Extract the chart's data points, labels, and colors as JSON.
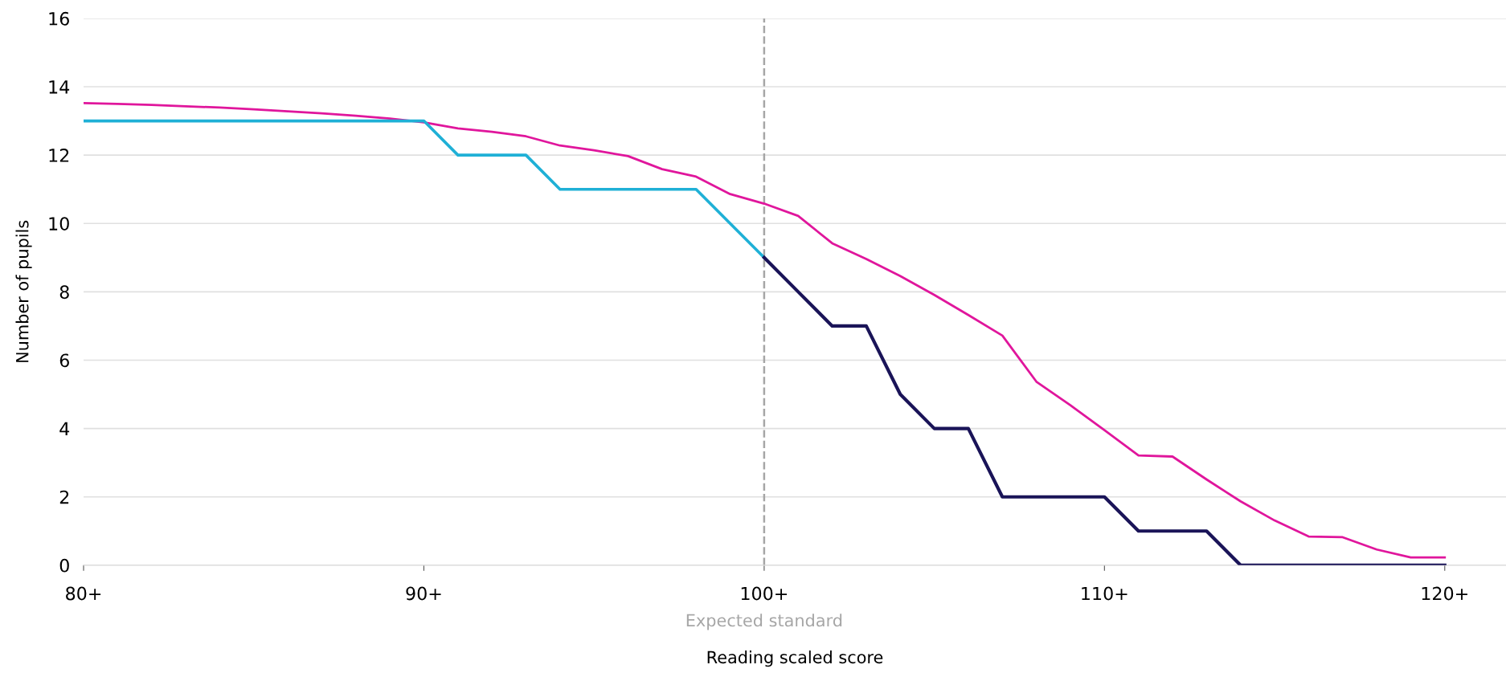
{
  "chart_data": {
    "type": "line",
    "xlabel": "Reading scaled score",
    "ylabel": "Number of pupils",
    "categories": [
      "80+",
      null,
      null,
      null,
      null,
      null,
      null,
      null,
      null,
      null,
      "90+",
      null,
      null,
      null,
      null,
      null,
      null,
      null,
      null,
      null,
      "100+",
      null,
      null,
      null,
      null,
      null,
      null,
      null,
      null,
      null,
      "110+",
      null,
      null,
      null,
      null,
      null,
      null,
      null,
      null,
      null,
      "120+"
    ],
    "ylim": [
      0,
      16
    ],
    "yticks": [
      0,
      2,
      4,
      6,
      8,
      10,
      12,
      14,
      16
    ],
    "grid": "y",
    "legend": false,
    "marker": "none",
    "line_style": "solid",
    "ref_lines": [
      {
        "axis": "x",
        "value": "100+",
        "label": "Expected standard",
        "color": "#a6a6a6",
        "line_style": "dashed"
      }
    ],
    "series": [
      {
        "color": "#e0169c",
        "values": [
          13.52,
          13.5,
          13.47,
          13.43,
          13.39,
          13.34,
          13.28,
          13.22,
          13.15,
          13.07,
          12.96,
          12.78,
          12.68,
          12.55,
          12.28,
          12.14,
          11.97,
          11.59,
          11.37,
          10.86,
          10.58,
          10.22,
          9.42,
          8.96,
          8.46,
          7.91,
          7.32,
          6.72,
          5.37,
          4.68,
          3.95,
          3.21,
          3.18,
          2.51,
          1.87,
          1.31,
          0.84,
          0.82,
          0.46,
          0.23,
          0.23
        ]
      },
      {
        "color": "#1fb0d6",
        "values": [
          13,
          13,
          13,
          13,
          13,
          13,
          13,
          13,
          13,
          13,
          13,
          12,
          12,
          12,
          11,
          11,
          11,
          11,
          11,
          10,
          9,
          null,
          null,
          null,
          null,
          null,
          null,
          null,
          null,
          null,
          null,
          null,
          null,
          null,
          null,
          null,
          null,
          null,
          null,
          null,
          null
        ]
      },
      {
        "color": "#1a1458",
        "values": [
          null,
          null,
          null,
          null,
          null,
          null,
          null,
          null,
          null,
          null,
          null,
          null,
          null,
          null,
          null,
          null,
          null,
          null,
          null,
          null,
          9,
          8,
          7,
          7,
          5,
          4,
          4,
          2,
          2,
          2,
          2,
          1,
          1,
          1,
          0,
          0,
          0,
          0,
          0,
          0,
          0
        ]
      }
    ]
  }
}
